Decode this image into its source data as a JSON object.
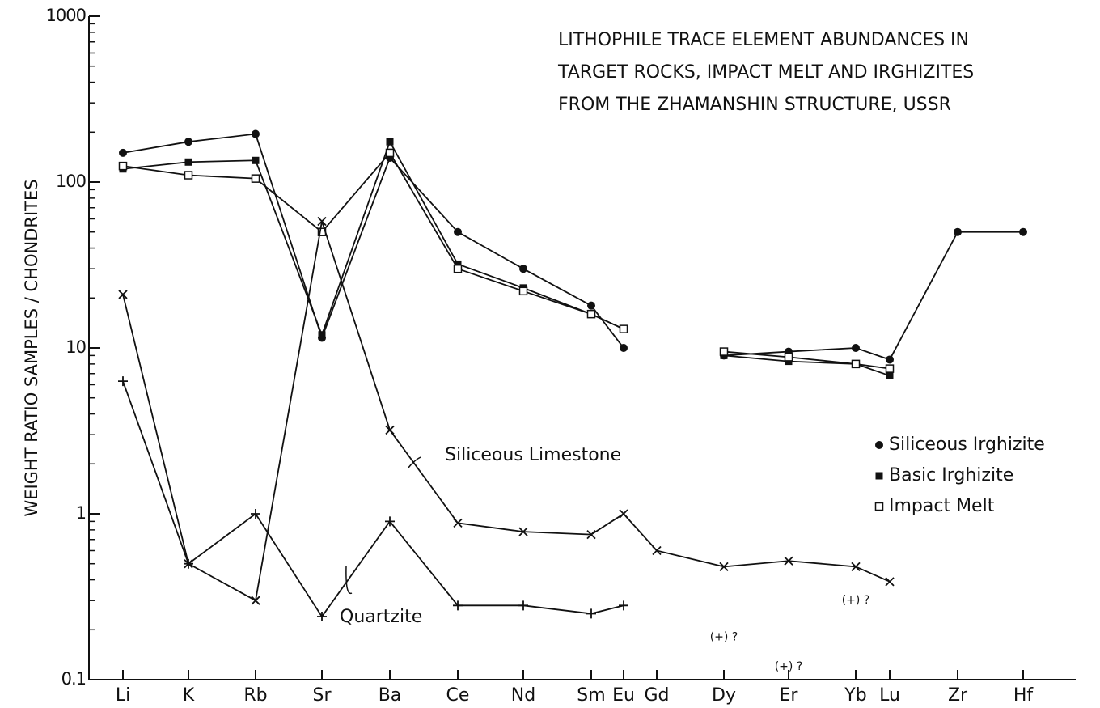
{
  "chart_data": {
    "type": "line",
    "title": [
      "LITHOPHILE TRACE ELEMENT ABUNDANCES IN",
      "TARGET ROCKS, IMPACT MELT AND IRGHIZITES",
      "FROM THE ZHAMANSHIN STRUCTURE, USSR"
    ],
    "y_label": "WEIGHT RATIO SAMPLES / CHONDRITES",
    "categories": [
      "Li",
      "K",
      "Rb",
      "Sr",
      "Ba",
      "Ce",
      "Nd",
      "Sm",
      "Eu",
      "Gd",
      "Dy",
      "Er",
      "Yb",
      "Lu",
      "Zr",
      "Hf"
    ],
    "log_y": true,
    "ylim": [
      0.1,
      1000
    ],
    "yticks": [
      0.1,
      1,
      10,
      100,
      1000
    ],
    "legend": "right",
    "series": [
      {
        "name": "Siliceous Irghizite",
        "color": "#111",
        "marker": "circle",
        "legend": true,
        "values": [
          150,
          175,
          195,
          11.5,
          140,
          50,
          30,
          18,
          10,
          null,
          9,
          9.5,
          10,
          8.5,
          50,
          50
        ]
      },
      {
        "name": "Basic Irghizite",
        "color": "#111",
        "marker": "square",
        "legend": true,
        "values": [
          120,
          132,
          135,
          12,
          175,
          32,
          23,
          16,
          13,
          null,
          9,
          8.3,
          8,
          6.8,
          null,
          null
        ]
      },
      {
        "name": "Impact Melt",
        "color": "#111",
        "marker": "open-square",
        "legend": true,
        "values": [
          125,
          110,
          105,
          50,
          150,
          30,
          22,
          16,
          13,
          null,
          9.5,
          8.8,
          8,
          7.5,
          null,
          null
        ]
      },
      {
        "name": "Siliceous Limestone",
        "color": "#111",
        "marker": "x",
        "legend": false,
        "values": [
          21,
          0.5,
          0.3,
          58,
          3.2,
          0.88,
          0.78,
          0.75,
          1.0,
          0.6,
          0.48,
          0.52,
          0.48,
          0.39,
          null,
          null
        ]
      },
      {
        "name": "Quartzite",
        "color": "#111",
        "marker": "plus",
        "legend": false,
        "values": [
          6.3,
          0.5,
          1.0,
          0.24,
          0.9,
          0.28,
          0.28,
          0.25,
          0.28,
          null,
          null,
          null,
          null,
          null,
          null,
          null
        ]
      }
    ],
    "annotations": [
      {
        "text": "(+) ?",
        "x": "Dy",
        "y": 0.18
      },
      {
        "text": "(+) ?",
        "x": "Er",
        "y": 0.12
      },
      {
        "text": "(+) ?",
        "x": "Yb",
        "y": 0.3
      }
    ]
  }
}
